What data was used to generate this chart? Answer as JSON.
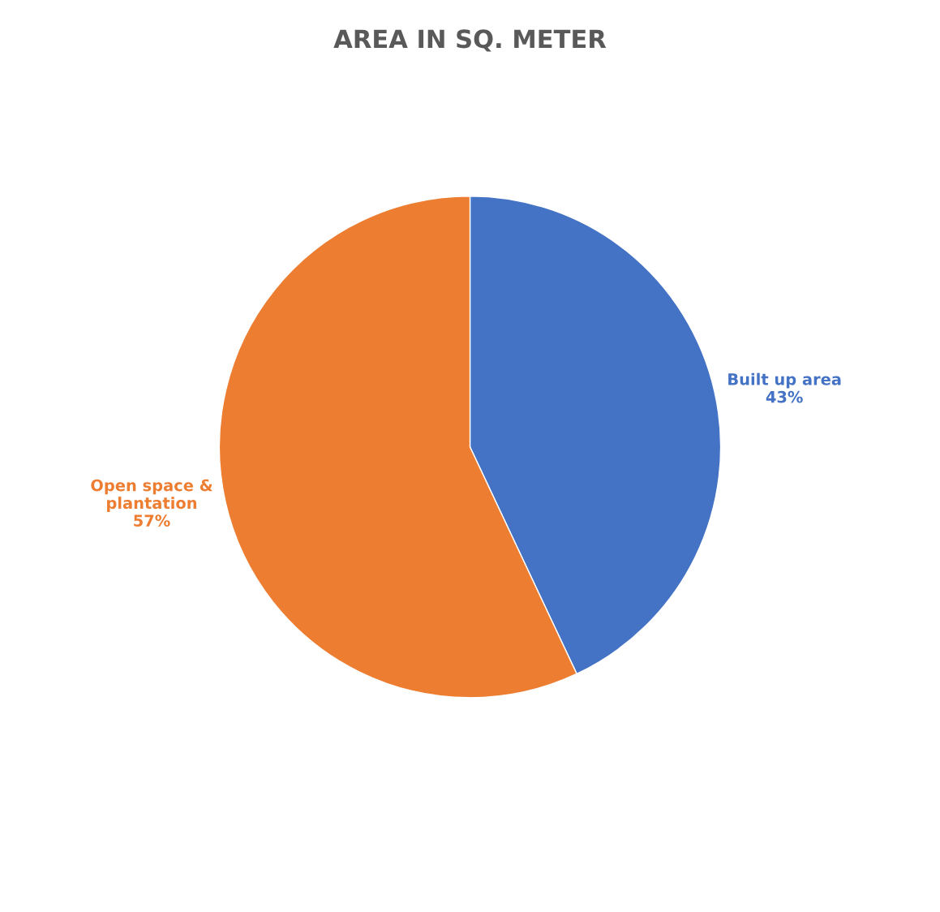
{
  "chart_data": {
    "type": "pie",
    "title": "AREA IN SQ. METER",
    "categories": [
      "Built up area",
      "Open space & plantation"
    ],
    "values": [
      43,
      57
    ],
    "value_labels": [
      "43%",
      "57%"
    ],
    "colors": [
      "#4472c4",
      "#ed7d31"
    ],
    "legend": false
  }
}
